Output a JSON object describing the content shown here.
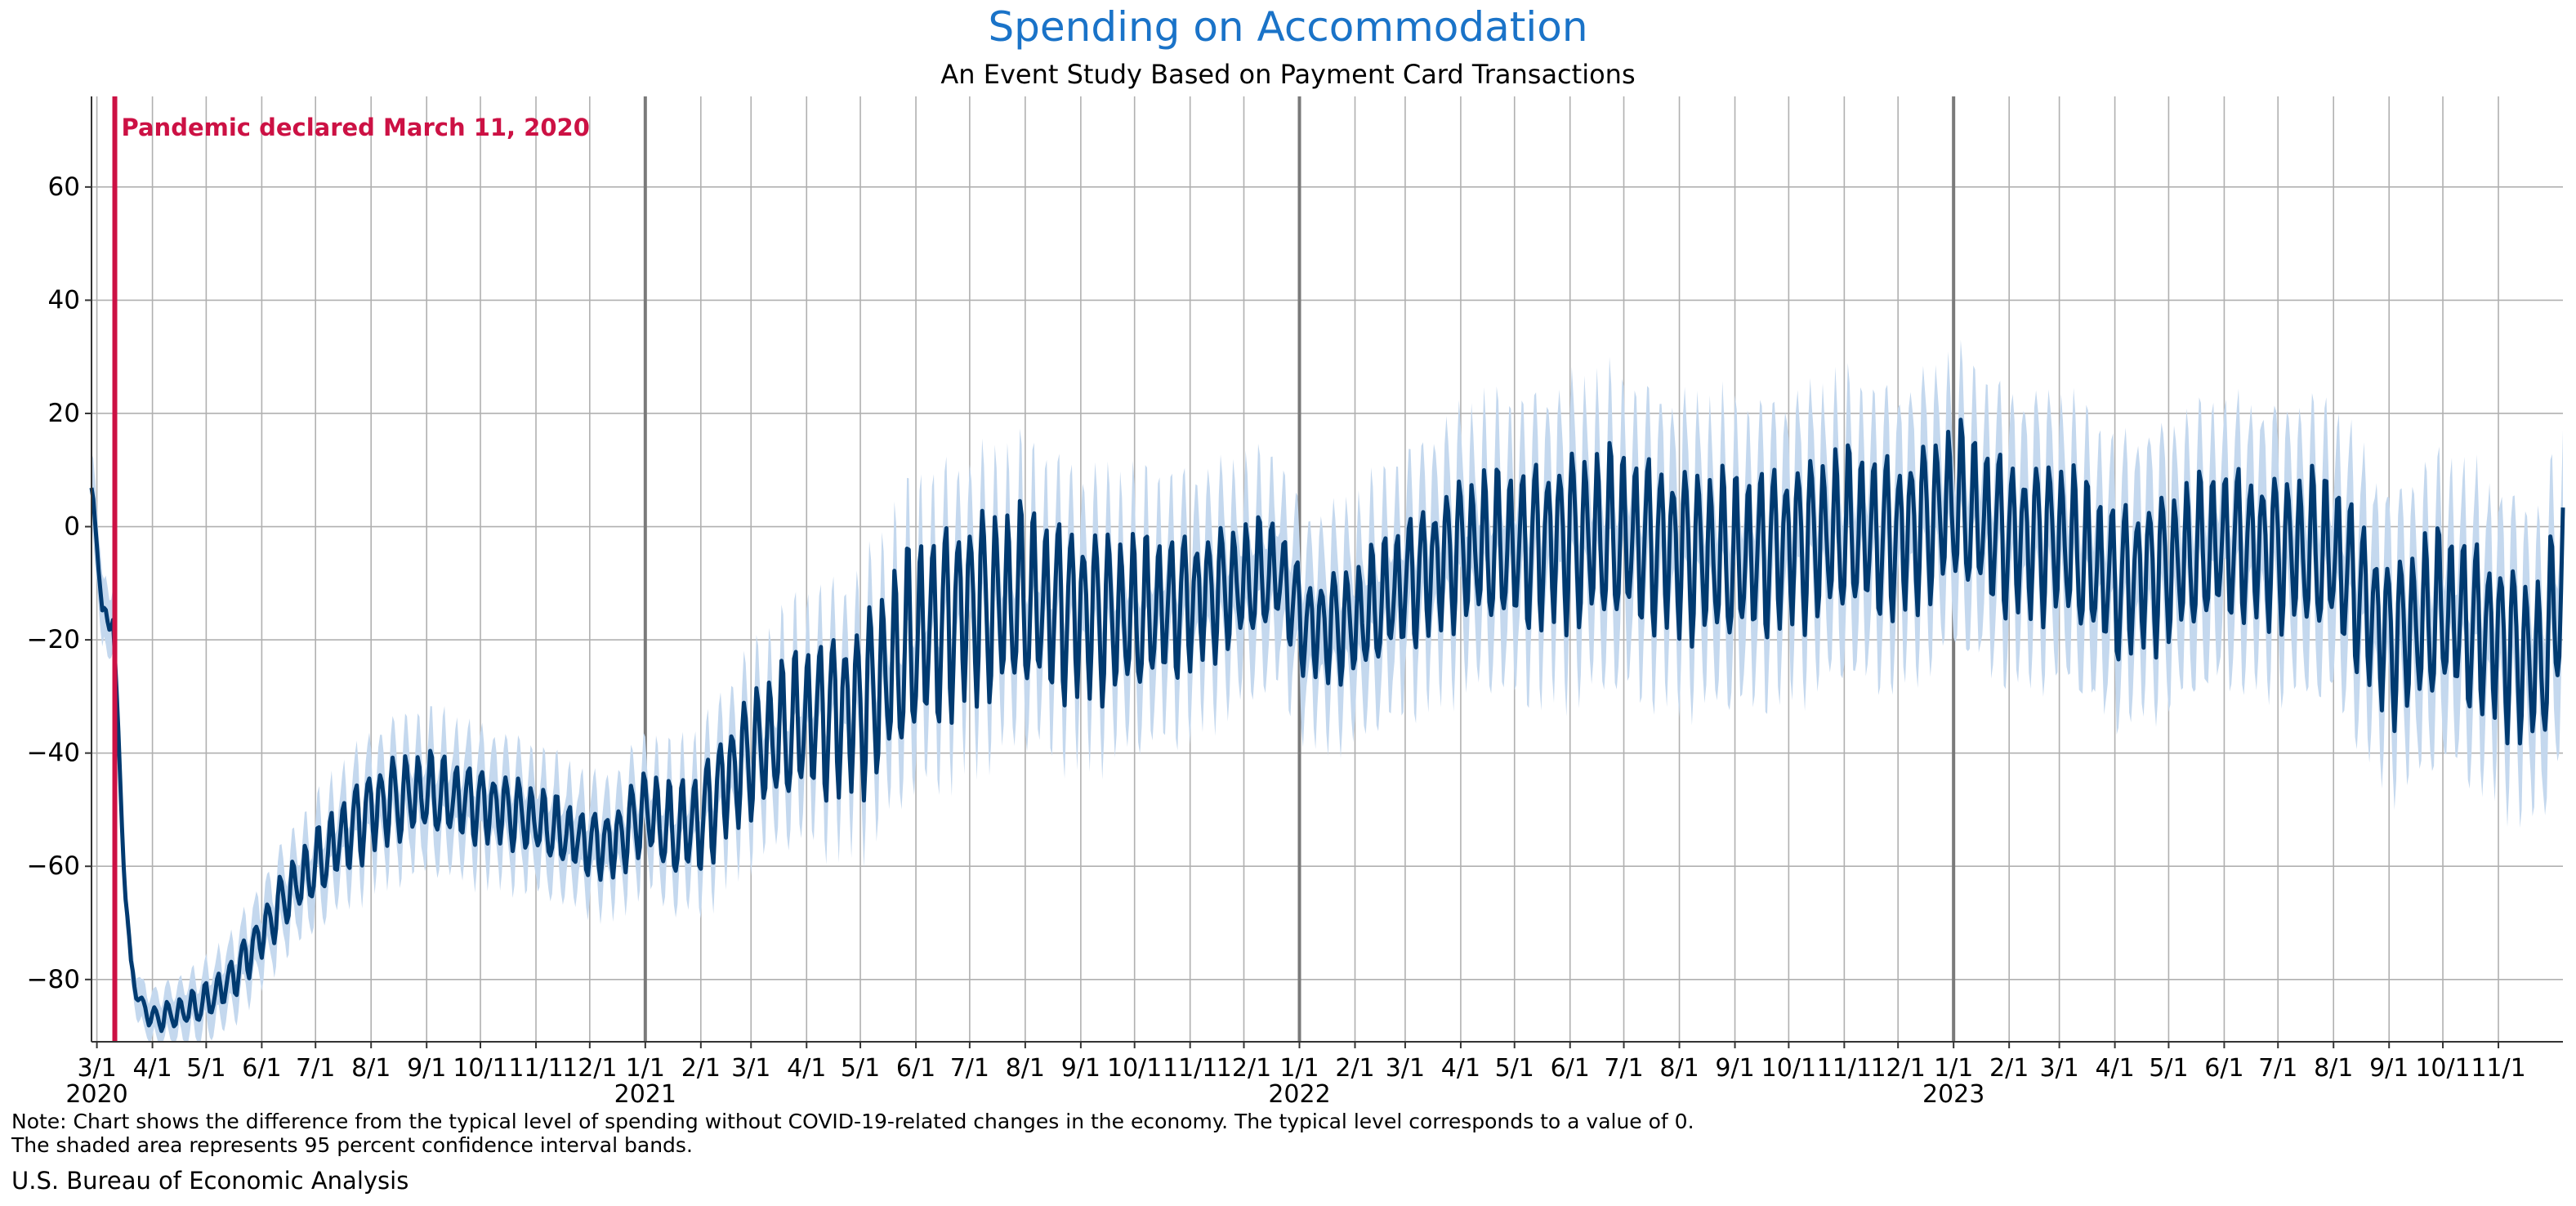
{
  "chart_data": {
    "type": "line",
    "title": "Spending on Accommodation",
    "subtitle": "An Event Study Based on Payment Card Transactions",
    "xlabel": "",
    "ylabel": "",
    "ylim": [
      -91,
      76
    ],
    "xlim": [
      "2020-02-27",
      "2023-12-07"
    ],
    "yticks": [
      60,
      40,
      20,
      0,
      -20,
      -40,
      -60,
      -80
    ],
    "ytick_labels": [
      "60",
      "40",
      "20",
      "0",
      "−20",
      "−40",
      "−60",
      "−80"
    ],
    "xticks": [
      {
        "date": "2020-03-01",
        "label": "3/1",
        "year": "2020"
      },
      {
        "date": "2020-04-01",
        "label": "4/1"
      },
      {
        "date": "2020-05-01",
        "label": "5/1"
      },
      {
        "date": "2020-06-01",
        "label": "6/1"
      },
      {
        "date": "2020-07-01",
        "label": "7/1"
      },
      {
        "date": "2020-08-01",
        "label": "8/1"
      },
      {
        "date": "2020-09-01",
        "label": "9/1"
      },
      {
        "date": "2020-10-01",
        "label": "10/1"
      },
      {
        "date": "2020-11-01",
        "label": "11/1"
      },
      {
        "date": "2020-12-01",
        "label": "12/1"
      },
      {
        "date": "2021-01-01",
        "label": "1/1",
        "year": "2021"
      },
      {
        "date": "2021-02-01",
        "label": "2/1"
      },
      {
        "date": "2021-03-01",
        "label": "3/1"
      },
      {
        "date": "2021-04-01",
        "label": "4/1"
      },
      {
        "date": "2021-05-01",
        "label": "5/1"
      },
      {
        "date": "2021-06-01",
        "label": "6/1"
      },
      {
        "date": "2021-07-01",
        "label": "7/1"
      },
      {
        "date": "2021-08-01",
        "label": "8/1"
      },
      {
        "date": "2021-09-01",
        "label": "9/1"
      },
      {
        "date": "2021-10-01",
        "label": "10/1"
      },
      {
        "date": "2021-11-01",
        "label": "11/1"
      },
      {
        "date": "2021-12-01",
        "label": "12/1"
      },
      {
        "date": "2022-01-01",
        "label": "1/1",
        "year": "2022"
      },
      {
        "date": "2022-02-01",
        "label": "2/1"
      },
      {
        "date": "2022-03-01",
        "label": "3/1"
      },
      {
        "date": "2022-04-01",
        "label": "4/1"
      },
      {
        "date": "2022-05-01",
        "label": "5/1"
      },
      {
        "date": "2022-06-01",
        "label": "6/1"
      },
      {
        "date": "2022-07-01",
        "label": "7/1"
      },
      {
        "date": "2022-08-01",
        "label": "8/1"
      },
      {
        "date": "2022-09-01",
        "label": "9/1"
      },
      {
        "date": "2022-10-01",
        "label": "10/1"
      },
      {
        "date": "2022-11-01",
        "label": "11/1"
      },
      {
        "date": "2022-12-01",
        "label": "12/1"
      },
      {
        "date": "2023-01-01",
        "label": "1/1",
        "year": "2023"
      },
      {
        "date": "2023-02-01",
        "label": "2/1"
      },
      {
        "date": "2023-03-01",
        "label": "3/1"
      },
      {
        "date": "2023-04-01",
        "label": "4/1"
      },
      {
        "date": "2023-05-01",
        "label": "5/1"
      },
      {
        "date": "2023-06-01",
        "label": "6/1"
      },
      {
        "date": "2023-07-01",
        "label": "7/1"
      },
      {
        "date": "2023-08-01",
        "label": "8/1"
      },
      {
        "date": "2023-09-01",
        "label": "9/1"
      },
      {
        "date": "2023-10-01",
        "label": "10/1"
      },
      {
        "date": "2023-11-01",
        "label": "11/1"
      }
    ],
    "year_boundaries": [
      "2021-01-01",
      "2022-01-01",
      "2023-01-01"
    ],
    "event_marker": {
      "date": "2020-03-11",
      "label": "Pandemic declared March 11, 2020",
      "color": "#cc1144"
    },
    "grid": true,
    "legend": "none",
    "series": [
      {
        "kind": "line_with_band",
        "color": "#003a70",
        "band_color": "#c4d8ee",
        "points": [
          [
            "2020-02-27",
            5
          ],
          [
            "2020-03-01",
            -2
          ],
          [
            "2020-03-04",
            -15
          ],
          [
            "2020-03-07",
            -17
          ],
          [
            "2020-03-10",
            -16
          ],
          [
            "2020-03-14",
            -45
          ],
          [
            "2020-03-17",
            -65
          ],
          [
            "2020-03-20",
            -78
          ],
          [
            "2020-03-25",
            -84
          ],
          [
            "2020-04-01",
            -87
          ],
          [
            "2020-04-15",
            -86
          ],
          [
            "2020-05-01",
            -84
          ],
          [
            "2020-05-15",
            -80
          ],
          [
            "2020-06-01",
            -72
          ],
          [
            "2020-06-15",
            -65
          ],
          [
            "2020-07-01",
            -60
          ],
          [
            "2020-07-15",
            -55
          ],
          [
            "2020-08-01",
            -50
          ],
          [
            "2020-08-15",
            -48
          ],
          [
            "2020-09-01",
            -47
          ],
          [
            "2020-09-15",
            -48
          ],
          [
            "2020-10-01",
            -49
          ],
          [
            "2020-10-15",
            -50
          ],
          [
            "2020-11-01",
            -52
          ],
          [
            "2020-11-15",
            -54
          ],
          [
            "2020-12-01",
            -56
          ],
          [
            "2020-12-15",
            -56
          ],
          [
            "2021-01-01",
            -50
          ],
          [
            "2021-01-15",
            -54
          ],
          [
            "2021-02-01",
            -52
          ],
          [
            "2021-02-15",
            -45
          ],
          [
            "2021-03-01",
            -40
          ],
          [
            "2021-04-01",
            -34
          ],
          [
            "2021-05-01",
            -32
          ],
          [
            "2021-06-01",
            -20
          ],
          [
            "2021-07-01",
            -14
          ],
          [
            "2021-08-01",
            -13
          ],
          [
            "2021-09-01",
            -15
          ],
          [
            "2021-10-01",
            -16
          ],
          [
            "2021-11-01",
            -13
          ],
          [
            "2021-12-01",
            -10
          ],
          [
            "2021-12-20",
            -8
          ],
          [
            "2022-01-05",
            -18
          ],
          [
            "2022-02-01",
            -17
          ],
          [
            "2022-03-01",
            -10
          ],
          [
            "2022-04-01",
            -4
          ],
          [
            "2022-05-01",
            -4
          ],
          [
            "2022-06-01",
            -2
          ],
          [
            "2022-07-01",
            -2
          ],
          [
            "2022-08-01",
            -4
          ],
          [
            "2022-09-01",
            -6
          ],
          [
            "2022-10-01",
            -3
          ],
          [
            "2022-11-01",
            -1
          ],
          [
            "2022-12-01",
            -2
          ],
          [
            "2023-01-01",
            4
          ],
          [
            "2023-02-01",
            -2
          ],
          [
            "2023-03-01",
            -2
          ],
          [
            "2023-04-01",
            -10
          ],
          [
            "2023-05-01",
            -7
          ],
          [
            "2023-06-01",
            -3
          ],
          [
            "2023-07-01",
            -4
          ],
          [
            "2023-08-01",
            -5
          ],
          [
            "2023-09-01",
            -20
          ],
          [
            "2023-10-01",
            -15
          ],
          [
            "2023-11-01",
            -20
          ],
          [
            "2023-11-25",
            -25
          ],
          [
            "2023-12-07",
            -10
          ]
        ],
        "amplitude": [
          [
            "2020-02-27",
            2
          ],
          [
            "2020-03-20",
            1.5
          ],
          [
            "2020-06-01",
            4
          ],
          [
            "2020-08-01",
            7
          ],
          [
            "2020-12-01",
            5
          ],
          [
            "2021-03-01",
            10
          ],
          [
            "2021-06-01",
            16
          ],
          [
            "2021-09-01",
            14
          ],
          [
            "2022-01-01",
            8
          ],
          [
            "2022-06-01",
            14
          ],
          [
            "2022-12-01",
            13
          ],
          [
            "2023-06-01",
            12
          ],
          [
            "2023-12-07",
            14
          ]
        ],
        "band_halfwidth": [
          [
            "2020-02-27",
            6
          ],
          [
            "2020-03-20",
            3
          ],
          [
            "2020-06-01",
            5
          ],
          [
            "2020-09-01",
            7
          ],
          [
            "2021-01-01",
            6
          ],
          [
            "2021-06-01",
            10
          ],
          [
            "2022-01-01",
            10
          ],
          [
            "2022-06-01",
            12
          ],
          [
            "2023-06-01",
            12
          ],
          [
            "2023-12-07",
            13
          ]
        ]
      }
    ]
  },
  "note_line1": "Note: Chart shows the difference from the typical level of spending without COVID-19-related changes in the economy. The typical level corresponds to a value of 0.",
  "note_line2": "The shaded area represents 95 percent confidence interval bands.",
  "source": "U.S. Bureau of Economic Analysis"
}
